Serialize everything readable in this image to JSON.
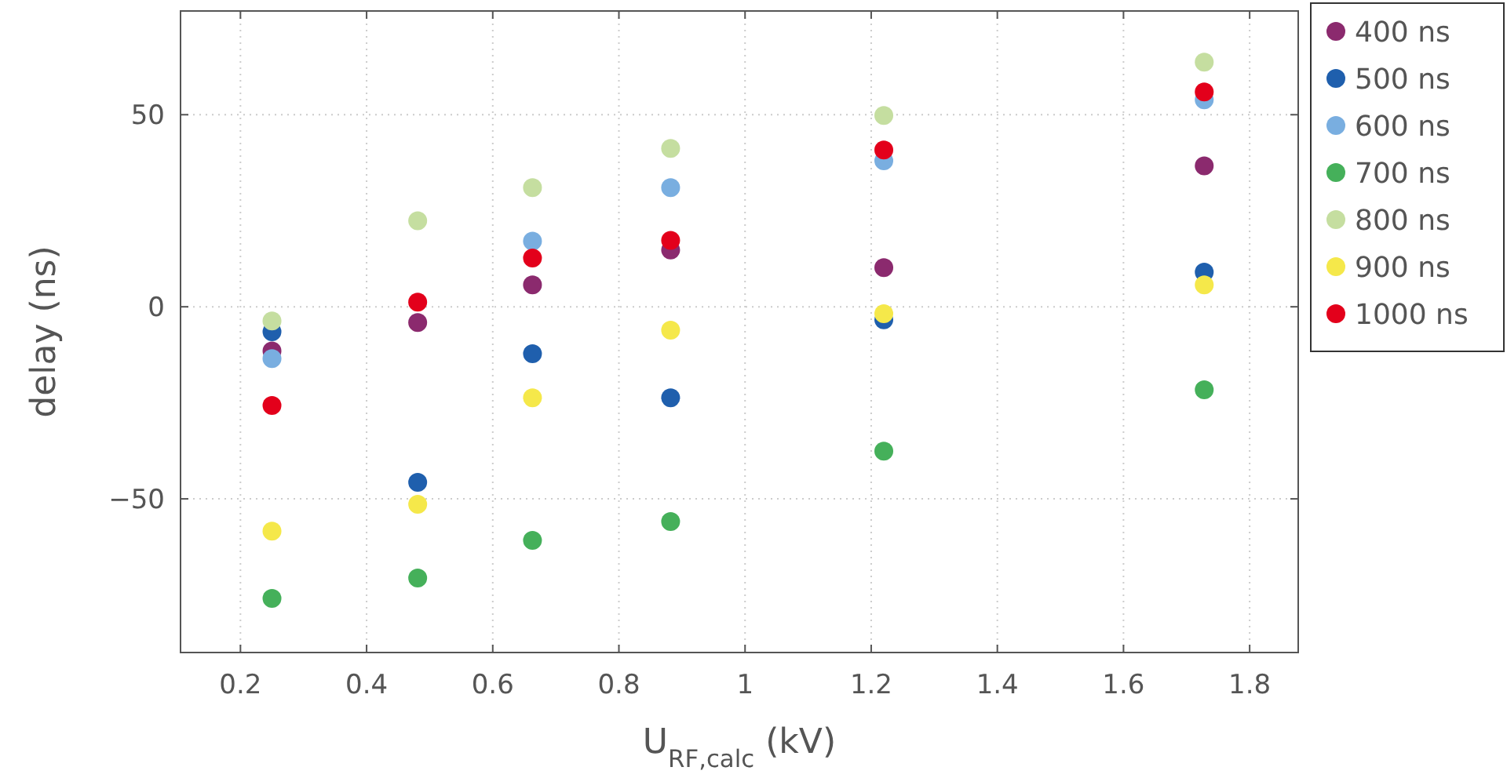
{
  "chart_data": {
    "type": "scatter",
    "xlabel": "U$_{RF,calc}$ (kV)",
    "ylabel": "delay (ns)",
    "x": [
      0.25,
      0.481,
      0.663,
      0.882,
      1.22,
      1.728
    ],
    "xlim": [
      0.105,
      1.877
    ],
    "xticks": [
      0.2,
      0.4,
      0.6,
      0.8,
      1,
      1.2,
      1.4,
      1.6,
      1.8
    ],
    "ylim": [
      -90,
      77
    ],
    "yticks": [
      {
        "value": -50,
        "label": "−50"
      },
      0,
      50
    ],
    "grid": true,
    "legend": "top right",
    "marker": "circle",
    "series": [
      {
        "name": "400 ns",
        "color": "#8b2a6e",
        "values": [
          -11.5,
          -4.1,
          5.7,
          14.8,
          10.2,
          36.7
        ]
      },
      {
        "name": "500 ns",
        "color": "#1f5fad",
        "values": [
          -6.5,
          -45.7,
          -12.2,
          -23.7,
          -3.4,
          9.0
        ]
      },
      {
        "name": "600 ns",
        "color": "#79aee0",
        "values": [
          -13.5,
          null,
          17.1,
          31,
          38,
          53.9
        ]
      },
      {
        "name": "700 ns",
        "color": "#45b05a",
        "values": [
          -75.9,
          -70.6,
          -60.8,
          -55.9,
          -37.6,
          -21.6
        ]
      },
      {
        "name": "800 ns",
        "color": "#c5dea0",
        "values": [
          -3.7,
          22.4,
          31,
          41.2,
          49.8,
          63.7
        ]
      },
      {
        "name": "900 ns",
        "color": "#f5e84a",
        "values": [
          -58.4,
          -51.4,
          -23.7,
          -6.1,
          -1.8,
          5.7
        ]
      },
      {
        "name": "1000 ns",
        "color": "#e3001b",
        "values": [
          -25.7,
          1.2,
          12.7,
          17.3,
          40.8,
          55.9
        ]
      }
    ]
  }
}
